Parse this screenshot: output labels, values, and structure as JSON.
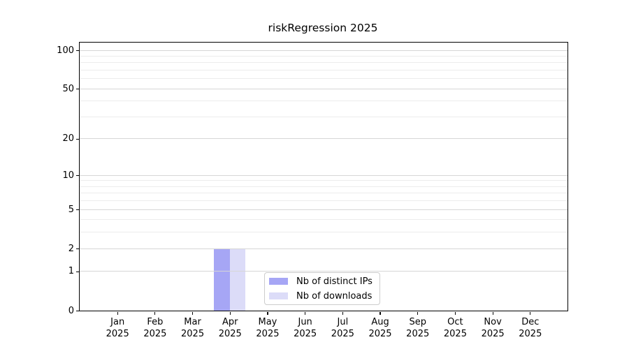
{
  "chart_data": {
    "type": "bar",
    "title": "riskRegression 2025",
    "categories": [
      "Jan 2025",
      "Feb 2025",
      "Mar 2025",
      "Apr 2025",
      "May 2025",
      "Jun 2025",
      "Jul 2025",
      "Aug 2025",
      "Sep 2025",
      "Oct 2025",
      "Nov 2025",
      "Dec 2025"
    ],
    "series": [
      {
        "name": "Nb of distinct IPs",
        "color": "#a6a6f5",
        "values": [
          0,
          0,
          0,
          2,
          0,
          0,
          0,
          0,
          0,
          0,
          0,
          0
        ]
      },
      {
        "name": "Nb of downloads",
        "color": "#dcdcf8",
        "values": [
          0,
          0,
          0,
          2,
          0,
          0,
          0,
          0,
          0,
          0,
          0,
          0
        ]
      }
    ],
    "xlabel": "",
    "ylabel": "",
    "yscale": "log1p",
    "ylim": [
      0,
      115
    ],
    "y_tick_labels": [
      0,
      1,
      2,
      5,
      10,
      20,
      50,
      100
    ],
    "y_minor_gridlines": [
      3,
      4,
      6,
      7,
      8,
      9,
      30,
      40,
      60,
      70,
      80,
      90
    ],
    "grid": {
      "horizontal": true,
      "major_color": "#d6d6d6",
      "minor_color": "#ececec"
    },
    "legend_position": "lower center, inside axes",
    "axis_color": "#000000",
    "background_color": "#ffffff"
  }
}
